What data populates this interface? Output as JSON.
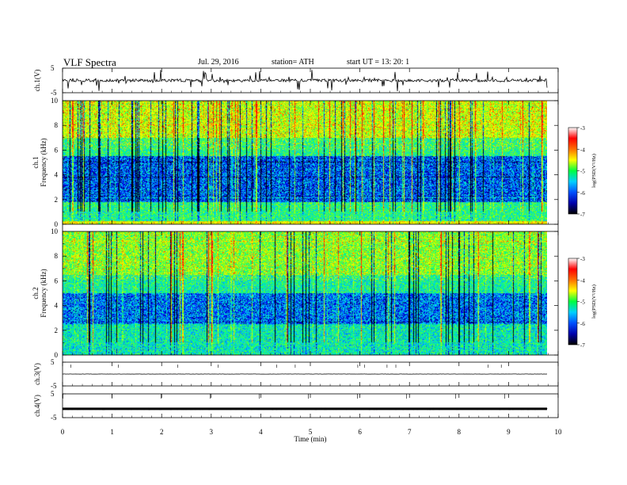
{
  "header": {
    "title": "VLF  Spectra",
    "date": "Jul.  29,  2016",
    "station": "station= ATH",
    "start_ut": "start  UT  =   13: 20: 1"
  },
  "colors": {
    "spectrogram": [
      "#000000",
      "#0000ff",
      "#00c8ff",
      "#00ff80",
      "#a0ff00",
      "#ffff00",
      "#ff8000",
      "#ff0000"
    ],
    "colorbar": [
      "#000000",
      "#0000aa",
      "#0050ff",
      "#00d0ff",
      "#00ff40",
      "#ffff00",
      "#ff7000",
      "#ff0000",
      "#ffffff"
    ]
  },
  "chart_data": [
    {
      "type": "line",
      "panel": "ch1_waveform",
      "ylabel": "ch.1(V)",
      "xlim": [
        0,
        10
      ],
      "ylim": [
        -5,
        5
      ],
      "yticks": [
        5,
        -5
      ],
      "mean_level": 0,
      "typical_amplitude": 0.6,
      "spike_amplitude": 4.5
    },
    {
      "type": "heatmap",
      "panel": "ch1_spectrogram",
      "ylabel_channel": "ch.1",
      "ylabel": "Frequency  (kHz)",
      "xlim": [
        0,
        9.8
      ],
      "ylim": [
        0,
        10
      ],
      "yticks": [
        0,
        2,
        4,
        6,
        8,
        10
      ],
      "colorbar": {
        "label": "log(PSD(V²/Hz)",
        "ticks": [
          "-3",
          "-4",
          "-5",
          "-6",
          "-7"
        ],
        "range": [
          -7,
          -3
        ]
      },
      "bands": [
        {
          "from": 0.0,
          "to": 0.2,
          "level": -4.2
        },
        {
          "from": 0.2,
          "to": 1.8,
          "level": -5.3
        },
        {
          "from": 1.8,
          "to": 5.5,
          "level": -6.2
        },
        {
          "from": 5.5,
          "to": 7.0,
          "level": -5.3
        },
        {
          "from": 7.0,
          "to": 10.0,
          "level": -4.6
        }
      ]
    },
    {
      "type": "heatmap",
      "panel": "ch2_spectrogram",
      "ylabel_channel": "ch.2",
      "ylabel": "Frequency  (kHz)",
      "xlim": [
        0,
        9.8
      ],
      "ylim": [
        0,
        10
      ],
      "yticks": [
        0,
        2,
        4,
        6,
        8,
        10
      ],
      "colorbar": {
        "label": "log(PSD(V²/Hz)",
        "ticks": [
          "-3",
          "-4",
          "-5",
          "-6",
          "-7"
        ],
        "range": [
          -7,
          -3
        ]
      },
      "bands": [
        {
          "from": 0.0,
          "to": 2.5,
          "level": -5.5
        },
        {
          "from": 2.5,
          "to": 5.0,
          "level": -6.1
        },
        {
          "from": 5.0,
          "to": 6.5,
          "level": -5.4
        },
        {
          "from": 6.5,
          "to": 10.0,
          "level": -4.9
        }
      ]
    },
    {
      "type": "line",
      "panel": "ch3_waveform",
      "ylabel": "ch.3(V)",
      "xlim": [
        0,
        10
      ],
      "ylim": [
        -5,
        5
      ],
      "yticks": [
        5,
        -5
      ],
      "mean_level": 0,
      "typical_amplitude": 0.05
    },
    {
      "type": "line",
      "panel": "ch4_waveform",
      "ylabel": "ch.4(V)",
      "xlim": [
        0,
        10
      ],
      "ylim": [
        -5,
        5
      ],
      "yticks": [
        5,
        -5
      ],
      "mean_level": -1.3,
      "typical_amplitude": 0.15
    }
  ],
  "x_axis": {
    "label": "Time  (min)",
    "ticks": [
      "0",
      "1",
      "2",
      "3",
      "4",
      "5",
      "6",
      "7",
      "8",
      "9",
      "10"
    ]
  }
}
